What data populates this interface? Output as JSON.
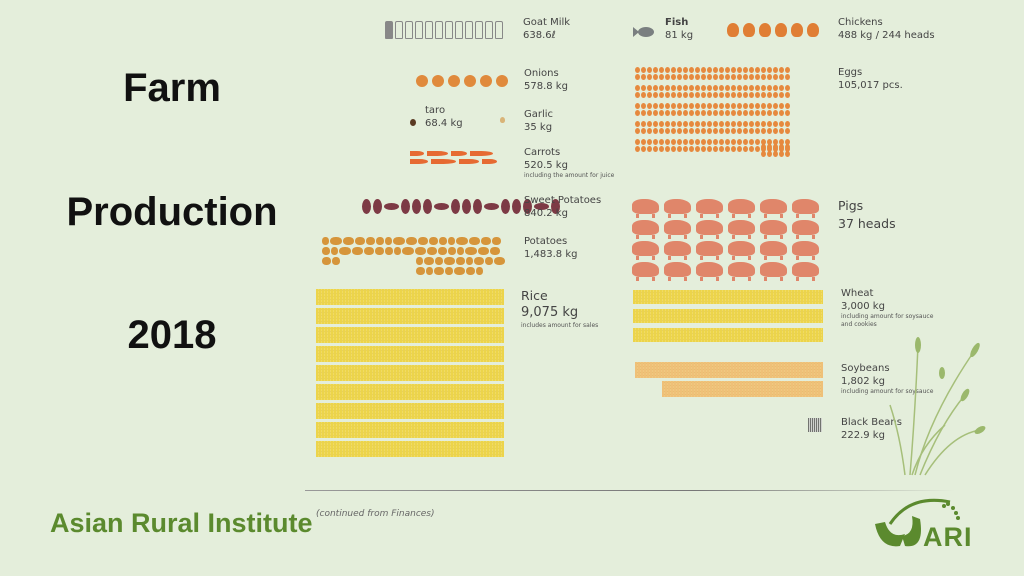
{
  "title": {
    "line1": "Farm",
    "line2": "Production",
    "line3": "2018"
  },
  "items": {
    "goat_milk": {
      "name": "Goat Milk",
      "value": "638.6ℓ"
    },
    "fish": {
      "name": "Fish",
      "value": "81 kg"
    },
    "chickens": {
      "name": "Chickens",
      "value": "488 kg / 244 heads"
    },
    "onions": {
      "name": "Onions",
      "value": "578.8 kg"
    },
    "eggs": {
      "name": "Eggs",
      "value": "105,017 pcs."
    },
    "taro": {
      "name": "taro",
      "value": "68.4 kg"
    },
    "garlic": {
      "name": "Garlic",
      "value": "35 kg"
    },
    "carrots": {
      "name": "Carrots",
      "value": "520.5 kg",
      "note": "including the amount for juice"
    },
    "sweet_potatoes": {
      "name": "Sweet Potatoes",
      "value": "840.2 kg"
    },
    "potatoes": {
      "name": "Potatoes",
      "value": "1,483.8 kg"
    },
    "pigs": {
      "name": "Pigs",
      "value": "37 heads"
    },
    "rice": {
      "name": "Rice",
      "value": "9,075 kg",
      "note": "includes amount for sales"
    },
    "wheat": {
      "name": "Wheat",
      "value": "3,000 kg",
      "note": "including amount for soysauce and cookies"
    },
    "soybeans": {
      "name": "Soybeans",
      "value": "1,802 kg",
      "note": "including amount for soysauce"
    },
    "black_beans": {
      "name": "Black Beans",
      "value": "222.9 kg"
    }
  },
  "footer": {
    "org": "Asian Rural Institute",
    "continued": "(continued from Finances)",
    "logo_text": "ARI"
  },
  "colors": {
    "brand_green": "#5b8a2e",
    "background": "#e4eedb"
  }
}
